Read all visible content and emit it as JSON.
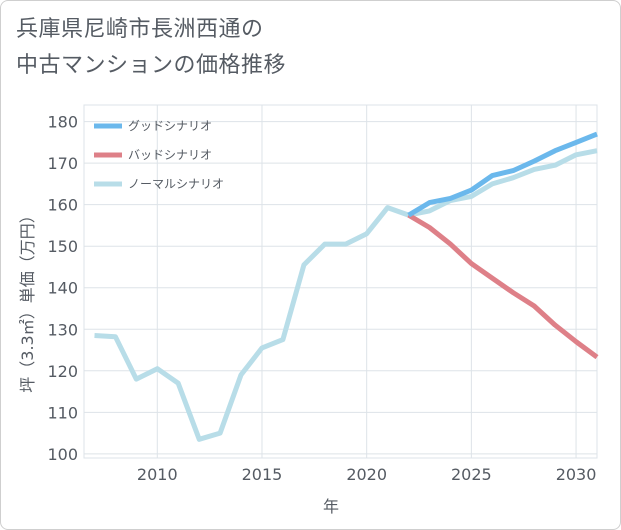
{
  "title_lines": [
    "兵庫県尼崎市長洲西通の",
    "中古マンションの価格推移"
  ],
  "chart_data": {
    "type": "line",
    "title": "兵庫県尼崎市長洲西通の中古マンションの価格推移",
    "xlabel": "年",
    "ylabel": "坪（3.3㎡）単価（万円）",
    "xlim": [
      2006.5,
      2031
    ],
    "ylim": [
      99,
      184
    ],
    "xticks": [
      2010,
      2015,
      2020,
      2025,
      2030
    ],
    "yticks": [
      100,
      110,
      120,
      130,
      140,
      150,
      160,
      170,
      180
    ],
    "grid": true,
    "legend_position": "top-left",
    "series": [
      {
        "name": "グッドシナリオ",
        "color": "#6bb8ec",
        "x": [
          2022,
          2023,
          2024,
          2025,
          2026,
          2027,
          2028,
          2029,
          2030,
          2031
        ],
        "values": [
          157.5,
          160.5,
          161.5,
          163.5,
          167,
          168.2,
          170.5,
          173,
          175,
          177
        ]
      },
      {
        "name": "バッドシナリオ",
        "color": "#de8088",
        "x": [
          2022,
          2023,
          2024,
          2025,
          2026,
          2027,
          2028,
          2029,
          2030,
          2031
        ],
        "values": [
          157.5,
          154.5,
          150.5,
          145.8,
          142.3,
          138.8,
          135.6,
          131,
          127,
          123.3
        ]
      },
      {
        "name": "ノーマルシナリオ",
        "color": "#b8dde8",
        "x": [
          2007,
          2008,
          2009,
          2010,
          2011,
          2012,
          2013,
          2014,
          2015,
          2016,
          2017,
          2018,
          2019,
          2020,
          2021,
          2022,
          2023,
          2024,
          2025,
          2026,
          2027,
          2028,
          2029,
          2030,
          2031
        ],
        "values": [
          128.5,
          128.2,
          118,
          120.5,
          117,
          103.5,
          105,
          119,
          125.5,
          127.5,
          145.5,
          150.5,
          150.5,
          153,
          159.3,
          157.5,
          158.5,
          161,
          162,
          165,
          166.5,
          168.5,
          169.5,
          172,
          173
        ]
      }
    ]
  }
}
